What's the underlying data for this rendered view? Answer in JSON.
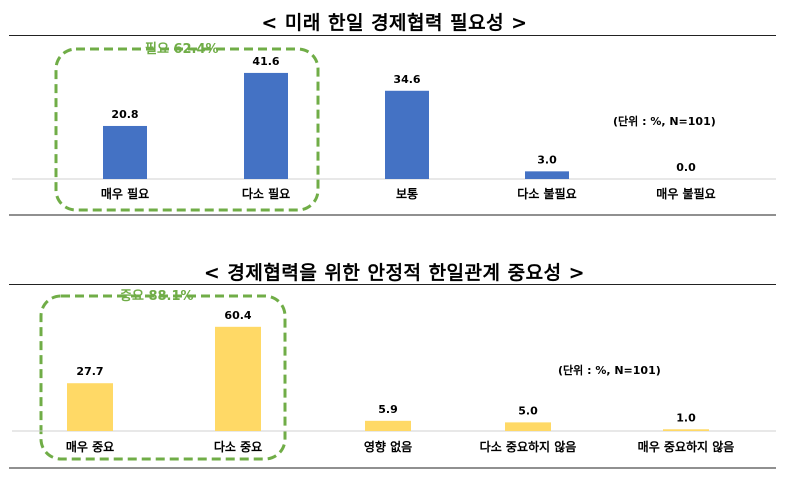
{
  "chart_data": [
    {
      "type": "bar",
      "title": "< 미래 한일 경제협력 필요성 >",
      "unit_note": "(단위 : %, N=101)",
      "categories": [
        "매우 필요",
        "다소 필요",
        "보통",
        "다소 불필요",
        "매우 불필요"
      ],
      "values": [
        20.8,
        41.6,
        34.6,
        3.0,
        0.0
      ],
      "value_labels": [
        "20.8",
        "41.6",
        "34.6",
        "3.0",
        "0.0"
      ],
      "color": "#4472C4",
      "group": {
        "label": "필요 62.4%",
        "color": "#70AD47",
        "categories": [
          "매우 필요",
          "다소 필요"
        ]
      },
      "ylim": [
        0,
        45
      ]
    },
    {
      "type": "bar",
      "title": "< 경제협력을 위한 안정적 한일관계 중요성 >",
      "unit_note": "(단위 : %, N=101)",
      "categories": [
        "매우 중요",
        "다소 중요",
        "영향 없음",
        "다소 중요하지 않음",
        "매우 중요하지 않음"
      ],
      "values": [
        27.7,
        60.4,
        5.9,
        5.0,
        1.0
      ],
      "value_labels": [
        "27.7",
        "60.4",
        "5.9",
        "5.0",
        "1.0"
      ],
      "color": "#FFD966",
      "group": {
        "label": "중요 88.1%",
        "color": "#70AD47",
        "categories": [
          "매우 중요",
          "다소 중요"
        ]
      },
      "ylim": [
        0,
        65
      ]
    }
  ]
}
